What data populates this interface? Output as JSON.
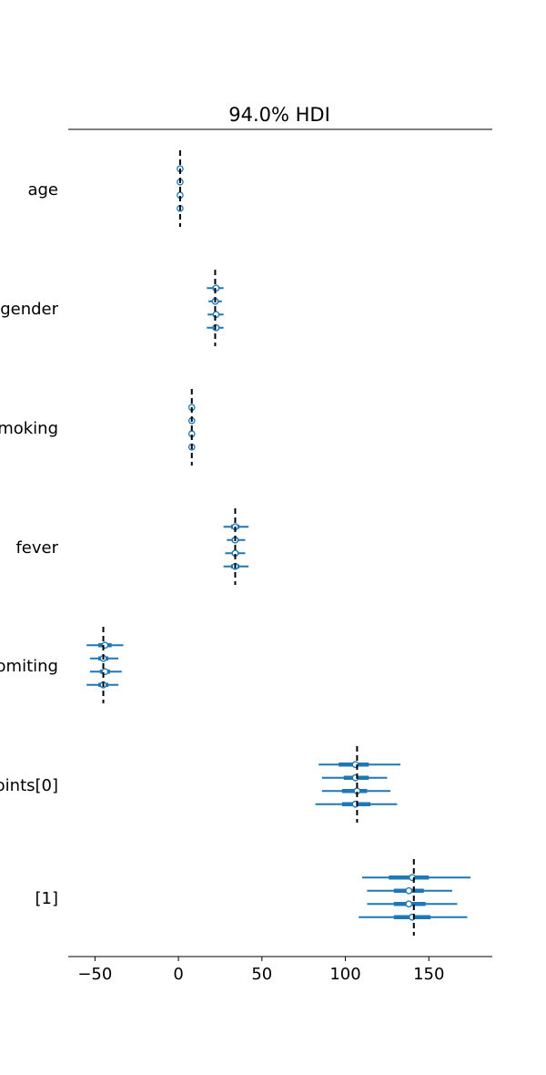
{
  "chart_data": {
    "type": "forest",
    "title": "94.0% HDI",
    "xlim": [
      -66,
      188
    ],
    "x_ticks": [
      -50,
      0,
      50,
      100,
      150
    ],
    "x_tick_labels": [
      "−50",
      "0",
      "50",
      "100",
      "150"
    ],
    "colors": {
      "interval": "#1f77b4",
      "reference": "#000000",
      "axis": "#000000"
    },
    "rows": [
      {
        "label": "age",
        "reference": 1,
        "chains": [
          {
            "mean": 1,
            "hdi": [
              0.3,
              1.7
            ],
            "iqr": [
              0.6,
              1.4
            ]
          },
          {
            "mean": 1,
            "hdi": [
              0.3,
              1.7
            ],
            "iqr": [
              0.6,
              1.4
            ]
          },
          {
            "mean": 1,
            "hdi": [
              0.3,
              1.7
            ],
            "iqr": [
              0.6,
              1.4
            ]
          },
          {
            "mean": 1,
            "hdi": [
              0.3,
              1.7
            ],
            "iqr": [
              0.6,
              1.4
            ]
          }
        ]
      },
      {
        "label": "gender",
        "reference": 22,
        "chains": [
          {
            "mean": 22.5,
            "hdi": [
              17,
              27
            ],
            "iqr": [
              20.5,
              24.5
            ]
          },
          {
            "mean": 22,
            "hdi": [
              18,
              26
            ],
            "iqr": [
              20.5,
              24
            ]
          },
          {
            "mean": 22.5,
            "hdi": [
              17.5,
              27
            ],
            "iqr": [
              21,
              24
            ]
          },
          {
            "mean": 22.5,
            "hdi": [
              17,
              27
            ],
            "iqr": [
              20.5,
              24.5
            ]
          }
        ]
      },
      {
        "label": "moking",
        "reference": 8,
        "chains": [
          {
            "mean": 8,
            "hdi": [
              7.2,
              8.8
            ],
            "iqr": [
              7.6,
              8.4
            ]
          },
          {
            "mean": 8,
            "hdi": [
              7.2,
              8.8
            ],
            "iqr": [
              7.6,
              8.4
            ]
          },
          {
            "mean": 8,
            "hdi": [
              7.2,
              8.8
            ],
            "iqr": [
              7.6,
              8.4
            ]
          },
          {
            "mean": 8,
            "hdi": [
              7.2,
              8.8
            ],
            "iqr": [
              7.6,
              8.4
            ]
          }
        ]
      },
      {
        "label": "fever",
        "reference": 34,
        "chains": [
          {
            "mean": 34,
            "hdi": [
              27,
              42
            ],
            "iqr": [
              31.5,
              36.5
            ]
          },
          {
            "mean": 34,
            "hdi": [
              29,
              40
            ],
            "iqr": [
              32,
              36
            ]
          },
          {
            "mean": 34,
            "hdi": [
              28,
              40
            ],
            "iqr": [
              32,
              36
            ]
          },
          {
            "mean": 34,
            "hdi": [
              27,
              42
            ],
            "iqr": [
              31.5,
              36.5
            ]
          }
        ]
      },
      {
        "label": "omiting",
        "reference": -45,
        "chains": [
          {
            "mean": -44,
            "hdi": [
              -55,
              -33
            ],
            "iqr": [
              -48,
              -40
            ]
          },
          {
            "mean": -45,
            "hdi": [
              -53,
              -36
            ],
            "iqr": [
              -48,
              -42
            ]
          },
          {
            "mean": -44,
            "hdi": [
              -53,
              -34
            ],
            "iqr": [
              -47,
              -41
            ]
          },
          {
            "mean": -45,
            "hdi": [
              -55,
              -36
            ],
            "iqr": [
              -48,
              -42
            ]
          }
        ]
      },
      {
        "label": "oints[0]",
        "reference": 107,
        "chains": [
          {
            "mean": 106,
            "hdi": [
              84,
              133
            ],
            "iqr": [
              96,
              114
            ]
          },
          {
            "mean": 106,
            "hdi": [
              86,
              125
            ],
            "iqr": [
              99,
              114
            ]
          },
          {
            "mean": 107,
            "hdi": [
              86,
              127
            ],
            "iqr": [
              98,
              113
            ]
          },
          {
            "mean": 106,
            "hdi": [
              82,
              131
            ],
            "iqr": [
              98,
              115
            ]
          }
        ]
      },
      {
        "label": "[1]",
        "reference": 141,
        "chains": [
          {
            "mean": 140,
            "hdi": [
              110,
              175
            ],
            "iqr": [
              126,
              150
            ]
          },
          {
            "mean": 138,
            "hdi": [
              113,
              164
            ],
            "iqr": [
              129,
              147
            ]
          },
          {
            "mean": 138,
            "hdi": [
              113,
              167
            ],
            "iqr": [
              129,
              148
            ]
          },
          {
            "mean": 140,
            "hdi": [
              108,
              173
            ],
            "iqr": [
              129,
              151
            ]
          }
        ]
      }
    ]
  }
}
